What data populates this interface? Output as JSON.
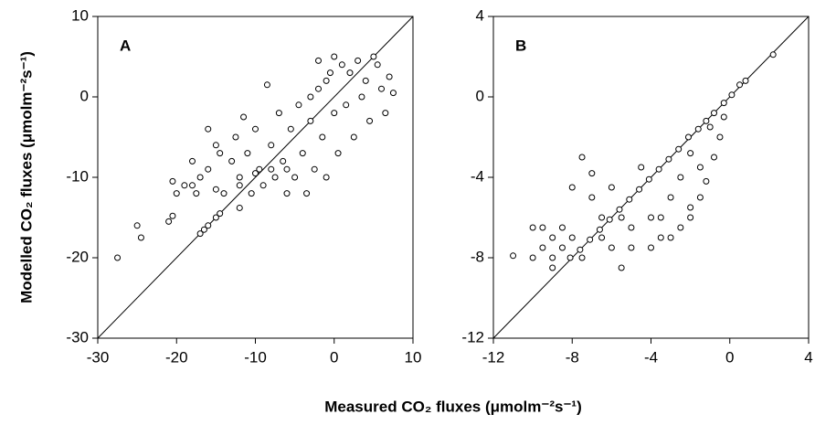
{
  "chart_data": [
    {
      "type": "scatter",
      "title": "A",
      "ylabel": "Modelled CO₂ fluxes (μmolm⁻²s⁻¹)",
      "xlabel": "Measured CO₂ fluxes (μmolm⁻²s⁻¹)",
      "xlim": [
        -30,
        10
      ],
      "ylim": [
        -30,
        10
      ],
      "xticks": [
        -30,
        -20,
        -10,
        0,
        10
      ],
      "yticks": [
        -30,
        -20,
        -10,
        0,
        10
      ],
      "one_to_one_line": true,
      "color": "#000000",
      "x": [
        -27.5,
        -25,
        -24.5,
        -21,
        -20.5,
        -17,
        -16.5,
        -16,
        -15,
        -14.5,
        -12,
        -20.5,
        -20,
        -19,
        -18,
        -17.5,
        -17,
        -16,
        -15,
        -14.5,
        -14,
        -13,
        -12.5,
        -12,
        -11.5,
        -11,
        -10.5,
        -10,
        -9.5,
        -9,
        -8.5,
        -8,
        -7.5,
        -7,
        -6.5,
        -6,
        -5.5,
        -5,
        -4.5,
        -4,
        -3.5,
        -3,
        -2.5,
        -2,
        -1.5,
        -1,
        -0.5,
        0,
        0,
        0.5,
        1,
        1.5,
        2,
        2.5,
        3,
        3.5,
        4,
        4.5,
        5,
        5.5,
        6,
        6.5,
        7,
        7.5,
        -2,
        -1,
        -3,
        -16,
        -15,
        -18,
        -10,
        -6,
        -8,
        -12
      ],
      "y": [
        -20,
        -16,
        -17.5,
        -15.5,
        -14.8,
        -17,
        -16.5,
        -16,
        -15,
        -14.5,
        -13.8,
        -10.5,
        -12,
        -11,
        -8,
        -12,
        -10,
        -9,
        -11.5,
        -7,
        -12,
        -8,
        -5,
        -10,
        -2.5,
        -7,
        -12,
        -4,
        -9,
        -11,
        1.5,
        -6,
        -10,
        -2,
        -8,
        -12,
        -4,
        -10,
        -1,
        -7,
        -12,
        -3,
        -9,
        1,
        -5,
        -10,
        3,
        -2,
        5,
        -7,
        4,
        -1,
        3,
        -5,
        4.5,
        0,
        2,
        -3,
        5,
        4,
        1,
        -2,
        2.5,
        0.5,
        4.5,
        2,
        0,
        -4,
        -6,
        -11,
        -9.5,
        -9,
        -9,
        -11
      ]
    },
    {
      "type": "scatter",
      "title": "B",
      "xlim": [
        -12,
        4
      ],
      "ylim": [
        -12,
        4
      ],
      "xticks": [
        -12,
        -8,
        -4,
        0,
        4
      ],
      "yticks": [
        -12,
        -8,
        -4,
        0,
        4
      ],
      "one_to_one_line": true,
      "color": "#000000",
      "x": [
        2.2,
        0.8,
        0.5,
        0.1,
        -0.3,
        -0.8,
        -1.2,
        -1.6,
        -2.1,
        -2.6,
        -3.1,
        -3.6,
        -4.1,
        -4.6,
        -5.1,
        -5.6,
        -6.1,
        -6.6,
        -7.1,
        -7.6,
        -8.1,
        -0.3,
        -0.5,
        -0.8,
        -1.2,
        -1.5,
        -2.0,
        -2.5,
        -3.0,
        -3.5,
        -4.0,
        -4.5,
        -5.0,
        -5.5,
        -5.5,
        -6.0,
        -6.5,
        -7.0,
        -7.0,
        -7.5,
        -7.5,
        -8.0,
        -8.0,
        -8.5,
        -8.5,
        -9.0,
        -9.0,
        -9.5,
        -9.5,
        -10.0,
        -10.0,
        -11.0,
        -9.0,
        -6.0,
        -4.0,
        -3.0,
        -2.0,
        -1.5,
        -2.5,
        -3.5,
        -5.0,
        -6.5,
        -1.0,
        -2.0
      ],
      "y": [
        2.1,
        0.8,
        0.6,
        0.1,
        -0.3,
        -0.8,
        -1.2,
        -1.6,
        -2.0,
        -2.6,
        -3.1,
        -3.6,
        -4.1,
        -4.6,
        -5.1,
        -5.6,
        -6.1,
        -6.6,
        -7.1,
        -7.6,
        -8.0,
        -1.0,
        -2.0,
        -3.0,
        -4.2,
        -3.5,
        -5.5,
        -6.5,
        -5.0,
        -7.0,
        -6.0,
        -3.5,
        -7.5,
        -6.0,
        -8.5,
        -4.5,
        -7.0,
        -5.0,
        -3.8,
        -3.0,
        -8.0,
        -4.5,
        -7.0,
        -6.5,
        -7.5,
        -7.0,
        -8.0,
        -6.5,
        -7.5,
        -6.5,
        -8.0,
        -7.9,
        -8.5,
        -7.5,
        -7.5,
        -7.0,
        -6.0,
        -5.0,
        -4.0,
        -6.0,
        -6.5,
        -6.0,
        -1.5,
        -2.8
      ]
    }
  ]
}
